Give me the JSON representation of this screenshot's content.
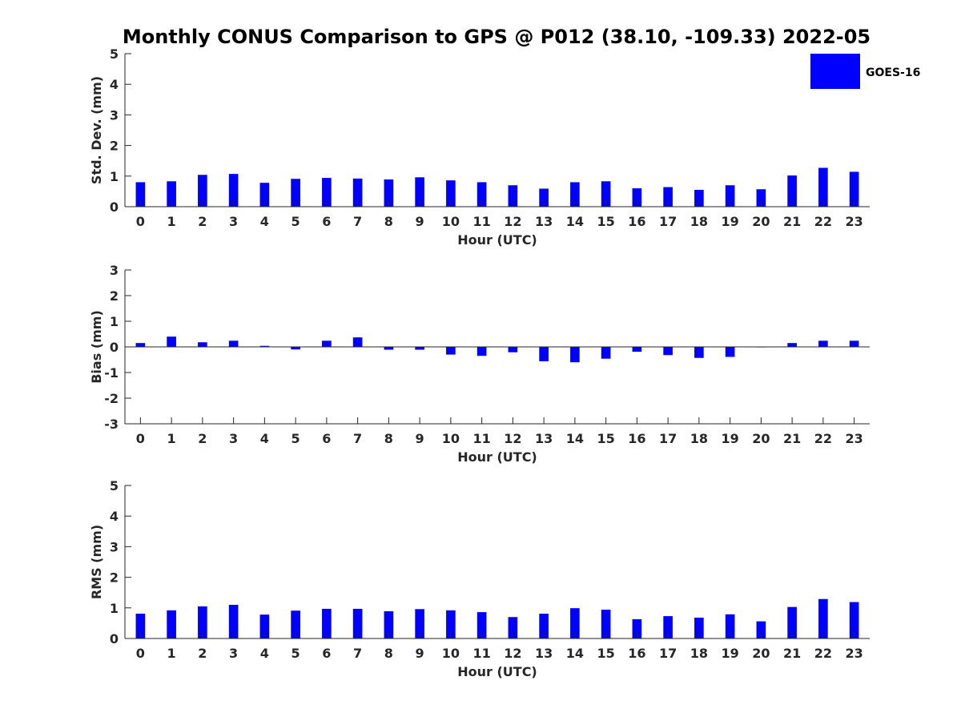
{
  "title": "Monthly CONUS Comparison to GPS @ P012 (38.10, -109.33) 2022-05",
  "legend": {
    "label": "GOES-16",
    "color": "#0000ff"
  },
  "chart_data": [
    {
      "type": "bar",
      "xlabel": "Hour (UTC)",
      "ylabel": "Std. Dev. (mm)",
      "ylim": [
        0,
        5
      ],
      "yticks": [
        0,
        1,
        2,
        3,
        4,
        5
      ],
      "categories": [
        "0",
        "1",
        "2",
        "3",
        "4",
        "5",
        "6",
        "7",
        "8",
        "9",
        "10",
        "11",
        "12",
        "13",
        "14",
        "15",
        "16",
        "17",
        "18",
        "19",
        "20",
        "21",
        "22",
        "23"
      ],
      "series": [
        {
          "name": "GOES-16",
          "values": [
            0.8,
            0.83,
            1.04,
            1.07,
            0.78,
            0.91,
            0.94,
            0.92,
            0.89,
            0.96,
            0.86,
            0.8,
            0.7,
            0.59,
            0.8,
            0.83,
            0.6,
            0.64,
            0.55,
            0.7,
            0.57,
            1.02,
            1.27,
            1.14
          ]
        }
      ],
      "grid": false
    },
    {
      "type": "bar",
      "xlabel": "Hour (UTC)",
      "ylabel": "Bias (mm)",
      "ylim": [
        -3,
        3
      ],
      "yticks": [
        -3,
        -2,
        -1,
        0,
        1,
        2,
        3
      ],
      "categories": [
        "0",
        "1",
        "2",
        "3",
        "4",
        "5",
        "6",
        "7",
        "8",
        "9",
        "10",
        "11",
        "12",
        "13",
        "14",
        "15",
        "16",
        "17",
        "18",
        "19",
        "20",
        "21",
        "22",
        "23"
      ],
      "series": [
        {
          "name": "GOES-16",
          "values": [
            0.15,
            0.4,
            0.18,
            0.24,
            0.04,
            -0.1,
            0.24,
            0.37,
            -0.11,
            -0.11,
            -0.3,
            -0.35,
            -0.21,
            -0.56,
            -0.6,
            -0.46,
            -0.19,
            -0.32,
            -0.43,
            -0.39,
            -0.01,
            0.15,
            0.24,
            0.24
          ]
        }
      ],
      "grid": false
    },
    {
      "type": "bar",
      "xlabel": "Hour (UTC)",
      "ylabel": "RMS (mm)",
      "ylim": [
        0,
        5
      ],
      "yticks": [
        0,
        1,
        2,
        3,
        4,
        5
      ],
      "categories": [
        "0",
        "1",
        "2",
        "3",
        "4",
        "5",
        "6",
        "7",
        "8",
        "9",
        "10",
        "11",
        "12",
        "13",
        "14",
        "15",
        "16",
        "17",
        "18",
        "19",
        "20",
        "21",
        "22",
        "23"
      ],
      "series": [
        {
          "name": "GOES-16",
          "values": [
            0.81,
            0.92,
            1.05,
            1.1,
            0.78,
            0.91,
            0.97,
            0.97,
            0.89,
            0.96,
            0.92,
            0.86,
            0.7,
            0.81,
            0.99,
            0.94,
            0.63,
            0.73,
            0.68,
            0.79,
            0.56,
            1.03,
            1.29,
            1.19
          ]
        }
      ],
      "grid": false
    }
  ]
}
